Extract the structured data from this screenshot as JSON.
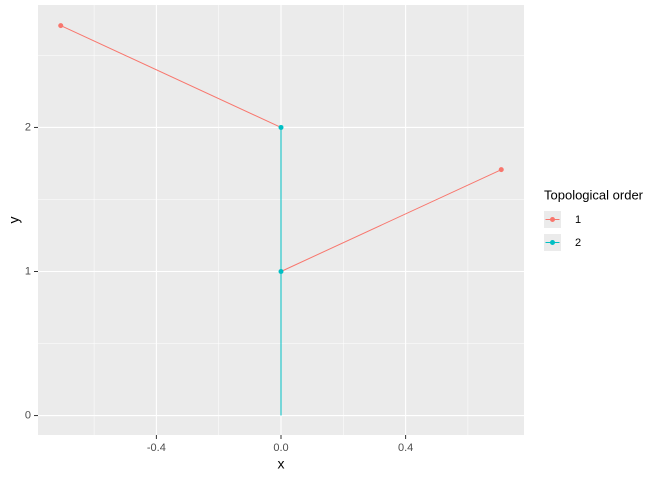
{
  "chart_data": {
    "type": "line",
    "x_label": "x",
    "y_label": "y",
    "legend_title": "Topological order",
    "legend_position": "right",
    "grid": true,
    "xlim": [
      -0.78,
      0.78
    ],
    "ylim": [
      -0.135,
      2.85
    ],
    "xticks": [
      -0.4,
      0.0,
      0.4
    ],
    "yticks": [
      0,
      1,
      2
    ],
    "xtick_labels": [
      "-0.4",
      "0.0",
      "0.4"
    ],
    "minor_xticks": [
      -0.6,
      -0.2,
      0.2,
      0.6
    ],
    "minor_yticks": [
      0.5,
      1.5,
      2.5
    ],
    "series": [
      {
        "name": "1",
        "color": "#F8766D",
        "x": [
          -0.707,
          0,
          null,
          0,
          0.707
        ],
        "values": [
          2.707,
          2,
          null,
          1,
          1.707
        ],
        "point_x": [
          -0.707,
          0.707
        ],
        "point_values": [
          2.707,
          1.707
        ]
      },
      {
        "name": "2",
        "color": "#00BFC4",
        "x": [
          0,
          0,
          0
        ],
        "values": [
          2,
          1,
          0
        ],
        "point_x": [
          0,
          0
        ],
        "point_values": [
          2,
          1
        ]
      }
    ]
  }
}
